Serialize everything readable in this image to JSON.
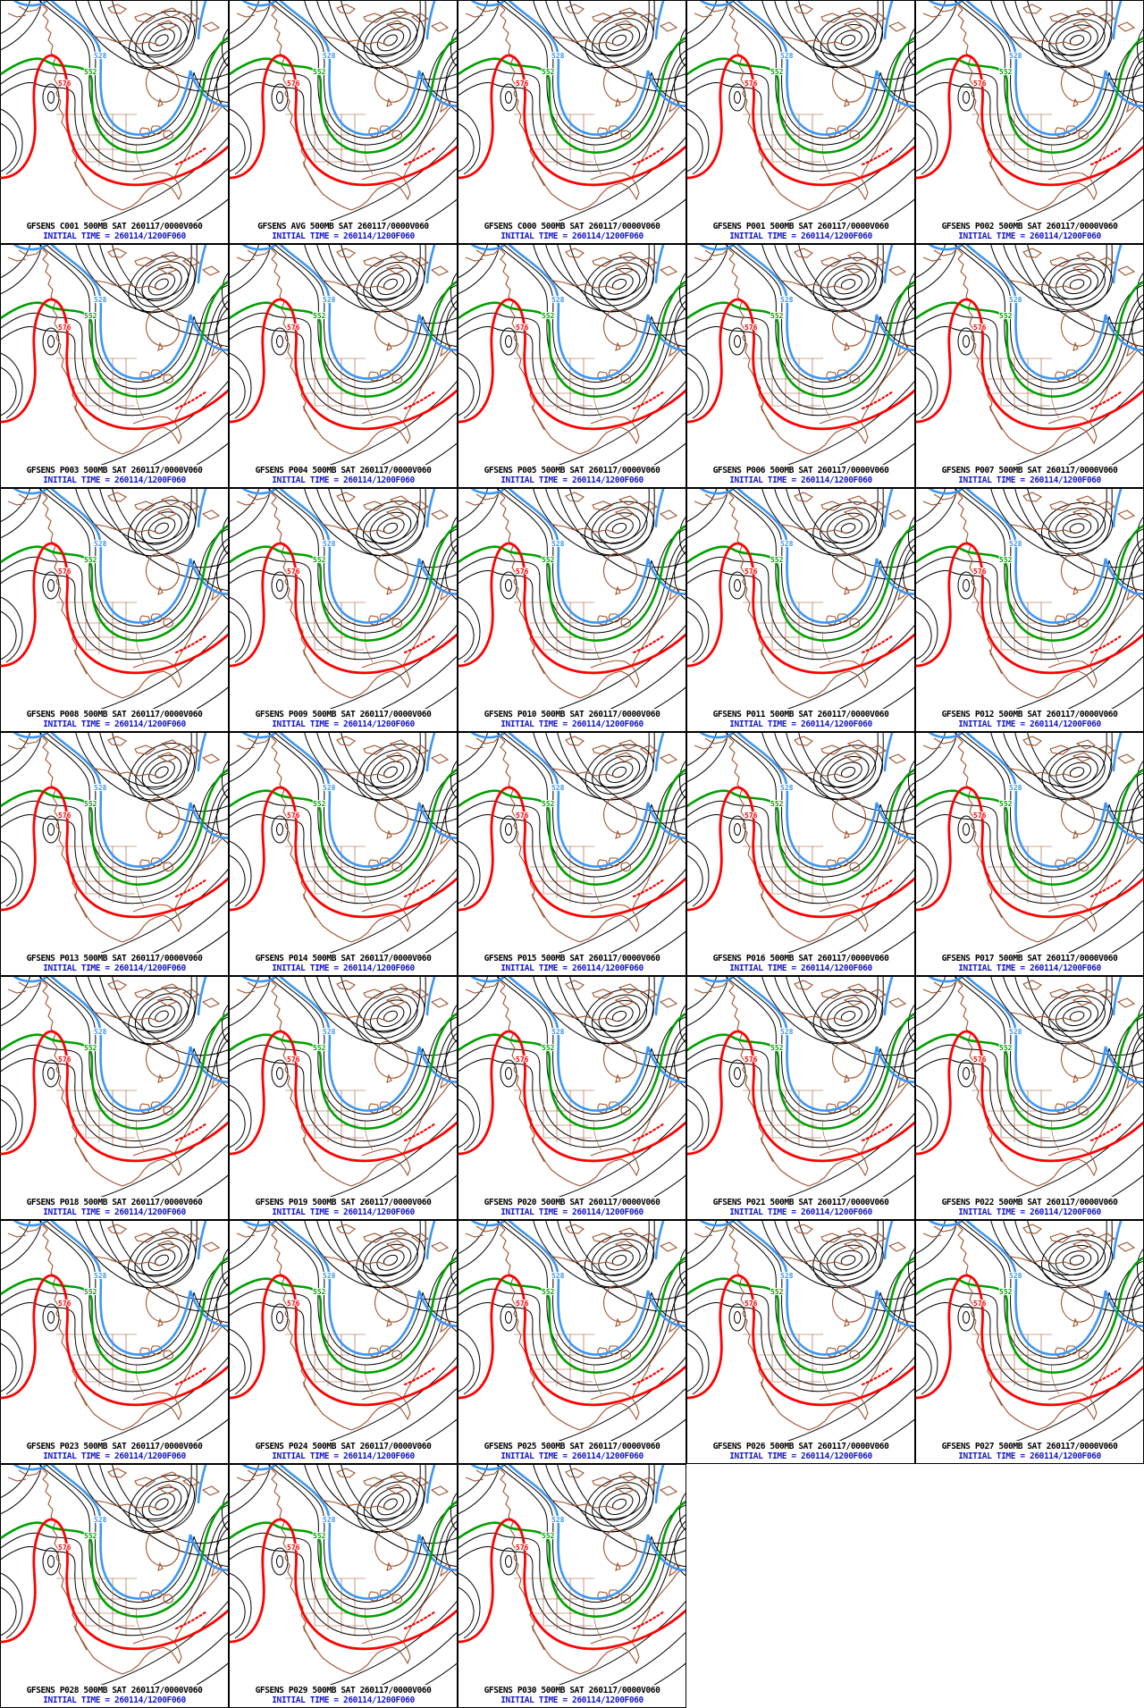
{
  "page": {
    "background": "#ffffff",
    "description": "GFS ensemble 500MB height forecast panel wall, 33 member maps of North America"
  },
  "grid": {
    "columns": 5,
    "rows": 7,
    "panel_count": 33
  },
  "captions": {
    "initial_time": "INITIAL TIME = 260114/1200F060"
  },
  "map": {
    "region": "north-america",
    "field": "500MB geopotential height contours",
    "contour_labels": {
      "red": "576",
      "green": "552",
      "blue": "528"
    },
    "colors": {
      "contour_black": "#000000",
      "highlight_576_red": "#ff0000",
      "highlight_552_green": "#00a000",
      "highlight_528_blue": "#3c96f5",
      "coastline_brown": "#a0522d",
      "caption_title": "#000000",
      "caption_time": "#1414cc"
    }
  },
  "panels": [
    {
      "member": "C001",
      "title": "GFSENS C001 500MB SAT 260117/0000V060"
    },
    {
      "member": "AVG",
      "title": "GFSENS AVG 500MB SAT 260117/0000V060"
    },
    {
      "member": "C000",
      "title": "GFSENS C000 500MB SAT 260117/0000V060"
    },
    {
      "member": "P001",
      "title": "GFSENS P001 500MB SAT 260117/0000V060"
    },
    {
      "member": "P002",
      "title": "GFSENS P002 500MB SAT 260117/0000V060"
    },
    {
      "member": "P003",
      "title": "GFSENS P003 500MB SAT 260117/0000V060"
    },
    {
      "member": "P004",
      "title": "GFSENS P004 500MB SAT 260117/0000V060"
    },
    {
      "member": "P005",
      "title": "GFSENS P005 500MB SAT 260117/0000V060"
    },
    {
      "member": "P006",
      "title": "GFSENS P006 500MB SAT 260117/0000V060"
    },
    {
      "member": "P007",
      "title": "GFSENS P007 500MB SAT 260117/0000V060"
    },
    {
      "member": "P008",
      "title": "GFSENS P008 500MB SAT 260117/0000V060"
    },
    {
      "member": "P009",
      "title": "GFSENS P009 500MB SAT 260117/0000V060"
    },
    {
      "member": "P010",
      "title": "GFSENS P010 500MB SAT 260117/0000V060"
    },
    {
      "member": "P011",
      "title": "GFSENS P011 500MB SAT 260117/0000V060"
    },
    {
      "member": "P012",
      "title": "GFSENS P012 500MB SAT 260117/0000V060"
    },
    {
      "member": "P013",
      "title": "GFSENS P013 500MB SAT 260117/0000V060"
    },
    {
      "member": "P014",
      "title": "GFSENS P014 500MB SAT 260117/0000V060"
    },
    {
      "member": "P015",
      "title": "GFSENS P015 500MB SAT 260117/0000V060"
    },
    {
      "member": "P016",
      "title": "GFSENS P016 500MB SAT 260117/0000V060"
    },
    {
      "member": "P017",
      "title": "GFSENS P017 500MB SAT 260117/0000V060"
    },
    {
      "member": "P018",
      "title": "GFSENS P018 500MB SAT 260117/0000V060"
    },
    {
      "member": "P019",
      "title": "GFSENS P019 500MB SAT 260117/0000V060"
    },
    {
      "member": "P020",
      "title": "GFSENS P020 500MB SAT 260117/0000V060"
    },
    {
      "member": "P021",
      "title": "GFSENS P021 500MB SAT 260117/0000V060"
    },
    {
      "member": "P022",
      "title": "GFSENS P022 500MB SAT 260117/0000V060"
    },
    {
      "member": "P023",
      "title": "GFSENS P023 500MB SAT 260117/0000V060"
    },
    {
      "member": "P024",
      "title": "GFSENS P024 500MB SAT 260117/0000V060"
    },
    {
      "member": "P025",
      "title": "GFSENS P025 500MB SAT 260117/0000V060"
    },
    {
      "member": "P026",
      "title": "GFSENS P026 500MB SAT 260117/0000V060"
    },
    {
      "member": "P027",
      "title": "GFSENS P027 500MB SAT 260117/0000V060"
    },
    {
      "member": "P028",
      "title": "GFSENS P028 500MB SAT 260117/0000V060"
    },
    {
      "member": "P029",
      "title": "GFSENS P029 500MB SAT 260117/0000V060"
    },
    {
      "member": "P030",
      "title": "GFSENS P030 500MB SAT 260117/0000V060"
    }
  ]
}
